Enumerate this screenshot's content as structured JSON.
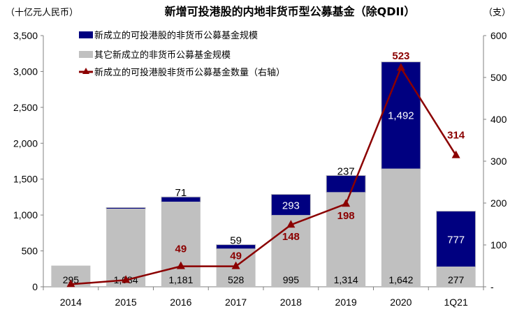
{
  "chart_data": {
    "type": "bar",
    "title": "新增可投港股的内地非货币型公募基金（除QDII）",
    "ylabel_left": "（十亿元人民币）",
    "ylabel_right": "（支）",
    "categories": [
      "2014",
      "2015",
      "2016",
      "2017",
      "2018",
      "2019",
      "2020",
      "1Q21"
    ],
    "ylim_left": [
      0,
      3500
    ],
    "yticks_left": [
      "0",
      "500",
      "1,000",
      "1,500",
      "2,000",
      "2,500",
      "3,000",
      "3,500"
    ],
    "ylim_right": [
      0,
      600
    ],
    "yticks_right": [
      "-",
      "100",
      "200",
      "300",
      "400",
      "500",
      "600"
    ],
    "legend_position": "top-left",
    "grid": false,
    "series": [
      {
        "name": "其它新成立的非货币公募基金规模",
        "kind": "bar-stack-bottom",
        "color": "#c0c0c0",
        "values": [
          295,
          1084,
          1181,
          528,
          995,
          1314,
          1642,
          277
        ],
        "labels": [
          "295",
          "1,084",
          "1,181",
          "528",
          "995",
          "1,314",
          "1,642",
          "277"
        ]
      },
      {
        "name": "新成立的可投港股的非货币公募基金规模",
        "kind": "bar-stack-top",
        "color": "#000080",
        "values": [
          0,
          20,
          71,
          59,
          293,
          237,
          1492,
          777
        ],
        "labels": [
          "",
          "",
          "71",
          "59",
          "293",
          "237",
          "1,492",
          "777"
        ]
      },
      {
        "name": "新成立的可投港股非货币公募基金数量（右轴）",
        "kind": "line-right-axis",
        "color": "#8b0000",
        "values": [
          6,
          16,
          49,
          49,
          148,
          198,
          523,
          314
        ],
        "labels": [
          "",
          "",
          "49",
          "49",
          "148",
          "198",
          "523",
          "314"
        ]
      }
    ]
  }
}
